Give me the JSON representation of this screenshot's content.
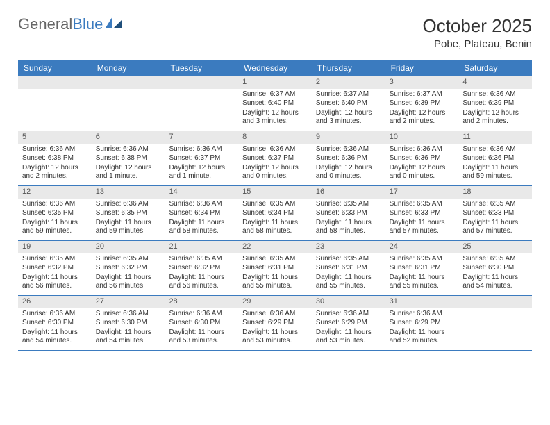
{
  "logo": {
    "general": "General",
    "blue": "Blue"
  },
  "title": "October 2025",
  "location": "Pobe, Plateau, Benin",
  "colors": {
    "header_bg": "#3b7bbf",
    "header_text": "#ffffff",
    "daynum_bg": "#e9e9e9",
    "text": "#333333",
    "border": "#3b7bbf",
    "logo_gray": "#666666",
    "logo_blue": "#3b7bbf"
  },
  "dayNames": [
    "Sunday",
    "Monday",
    "Tuesday",
    "Wednesday",
    "Thursday",
    "Friday",
    "Saturday"
  ],
  "weeks": [
    [
      {
        "num": "",
        "sunrise": "",
        "sunset": "",
        "daylight": ""
      },
      {
        "num": "",
        "sunrise": "",
        "sunset": "",
        "daylight": ""
      },
      {
        "num": "",
        "sunrise": "",
        "sunset": "",
        "daylight": ""
      },
      {
        "num": "1",
        "sunrise": "Sunrise: 6:37 AM",
        "sunset": "Sunset: 6:40 PM",
        "daylight": "Daylight: 12 hours and 3 minutes."
      },
      {
        "num": "2",
        "sunrise": "Sunrise: 6:37 AM",
        "sunset": "Sunset: 6:40 PM",
        "daylight": "Daylight: 12 hours and 3 minutes."
      },
      {
        "num": "3",
        "sunrise": "Sunrise: 6:37 AM",
        "sunset": "Sunset: 6:39 PM",
        "daylight": "Daylight: 12 hours and 2 minutes."
      },
      {
        "num": "4",
        "sunrise": "Sunrise: 6:36 AM",
        "sunset": "Sunset: 6:39 PM",
        "daylight": "Daylight: 12 hours and 2 minutes."
      }
    ],
    [
      {
        "num": "5",
        "sunrise": "Sunrise: 6:36 AM",
        "sunset": "Sunset: 6:38 PM",
        "daylight": "Daylight: 12 hours and 2 minutes."
      },
      {
        "num": "6",
        "sunrise": "Sunrise: 6:36 AM",
        "sunset": "Sunset: 6:38 PM",
        "daylight": "Daylight: 12 hours and 1 minute."
      },
      {
        "num": "7",
        "sunrise": "Sunrise: 6:36 AM",
        "sunset": "Sunset: 6:37 PM",
        "daylight": "Daylight: 12 hours and 1 minute."
      },
      {
        "num": "8",
        "sunrise": "Sunrise: 6:36 AM",
        "sunset": "Sunset: 6:37 PM",
        "daylight": "Daylight: 12 hours and 0 minutes."
      },
      {
        "num": "9",
        "sunrise": "Sunrise: 6:36 AM",
        "sunset": "Sunset: 6:36 PM",
        "daylight": "Daylight: 12 hours and 0 minutes."
      },
      {
        "num": "10",
        "sunrise": "Sunrise: 6:36 AM",
        "sunset": "Sunset: 6:36 PM",
        "daylight": "Daylight: 12 hours and 0 minutes."
      },
      {
        "num": "11",
        "sunrise": "Sunrise: 6:36 AM",
        "sunset": "Sunset: 6:36 PM",
        "daylight": "Daylight: 11 hours and 59 minutes."
      }
    ],
    [
      {
        "num": "12",
        "sunrise": "Sunrise: 6:36 AM",
        "sunset": "Sunset: 6:35 PM",
        "daylight": "Daylight: 11 hours and 59 minutes."
      },
      {
        "num": "13",
        "sunrise": "Sunrise: 6:36 AM",
        "sunset": "Sunset: 6:35 PM",
        "daylight": "Daylight: 11 hours and 59 minutes."
      },
      {
        "num": "14",
        "sunrise": "Sunrise: 6:36 AM",
        "sunset": "Sunset: 6:34 PM",
        "daylight": "Daylight: 11 hours and 58 minutes."
      },
      {
        "num": "15",
        "sunrise": "Sunrise: 6:35 AM",
        "sunset": "Sunset: 6:34 PM",
        "daylight": "Daylight: 11 hours and 58 minutes."
      },
      {
        "num": "16",
        "sunrise": "Sunrise: 6:35 AM",
        "sunset": "Sunset: 6:33 PM",
        "daylight": "Daylight: 11 hours and 58 minutes."
      },
      {
        "num": "17",
        "sunrise": "Sunrise: 6:35 AM",
        "sunset": "Sunset: 6:33 PM",
        "daylight": "Daylight: 11 hours and 57 minutes."
      },
      {
        "num": "18",
        "sunrise": "Sunrise: 6:35 AM",
        "sunset": "Sunset: 6:33 PM",
        "daylight": "Daylight: 11 hours and 57 minutes."
      }
    ],
    [
      {
        "num": "19",
        "sunrise": "Sunrise: 6:35 AM",
        "sunset": "Sunset: 6:32 PM",
        "daylight": "Daylight: 11 hours and 56 minutes."
      },
      {
        "num": "20",
        "sunrise": "Sunrise: 6:35 AM",
        "sunset": "Sunset: 6:32 PM",
        "daylight": "Daylight: 11 hours and 56 minutes."
      },
      {
        "num": "21",
        "sunrise": "Sunrise: 6:35 AM",
        "sunset": "Sunset: 6:32 PM",
        "daylight": "Daylight: 11 hours and 56 minutes."
      },
      {
        "num": "22",
        "sunrise": "Sunrise: 6:35 AM",
        "sunset": "Sunset: 6:31 PM",
        "daylight": "Daylight: 11 hours and 55 minutes."
      },
      {
        "num": "23",
        "sunrise": "Sunrise: 6:35 AM",
        "sunset": "Sunset: 6:31 PM",
        "daylight": "Daylight: 11 hours and 55 minutes."
      },
      {
        "num": "24",
        "sunrise": "Sunrise: 6:35 AM",
        "sunset": "Sunset: 6:31 PM",
        "daylight": "Daylight: 11 hours and 55 minutes."
      },
      {
        "num": "25",
        "sunrise": "Sunrise: 6:35 AM",
        "sunset": "Sunset: 6:30 PM",
        "daylight": "Daylight: 11 hours and 54 minutes."
      }
    ],
    [
      {
        "num": "26",
        "sunrise": "Sunrise: 6:36 AM",
        "sunset": "Sunset: 6:30 PM",
        "daylight": "Daylight: 11 hours and 54 minutes."
      },
      {
        "num": "27",
        "sunrise": "Sunrise: 6:36 AM",
        "sunset": "Sunset: 6:30 PM",
        "daylight": "Daylight: 11 hours and 54 minutes."
      },
      {
        "num": "28",
        "sunrise": "Sunrise: 6:36 AM",
        "sunset": "Sunset: 6:30 PM",
        "daylight": "Daylight: 11 hours and 53 minutes."
      },
      {
        "num": "29",
        "sunrise": "Sunrise: 6:36 AM",
        "sunset": "Sunset: 6:29 PM",
        "daylight": "Daylight: 11 hours and 53 minutes."
      },
      {
        "num": "30",
        "sunrise": "Sunrise: 6:36 AM",
        "sunset": "Sunset: 6:29 PM",
        "daylight": "Daylight: 11 hours and 53 minutes."
      },
      {
        "num": "31",
        "sunrise": "Sunrise: 6:36 AM",
        "sunset": "Sunset: 6:29 PM",
        "daylight": "Daylight: 11 hours and 52 minutes."
      },
      {
        "num": "",
        "sunrise": "",
        "sunset": "",
        "daylight": ""
      }
    ]
  ]
}
